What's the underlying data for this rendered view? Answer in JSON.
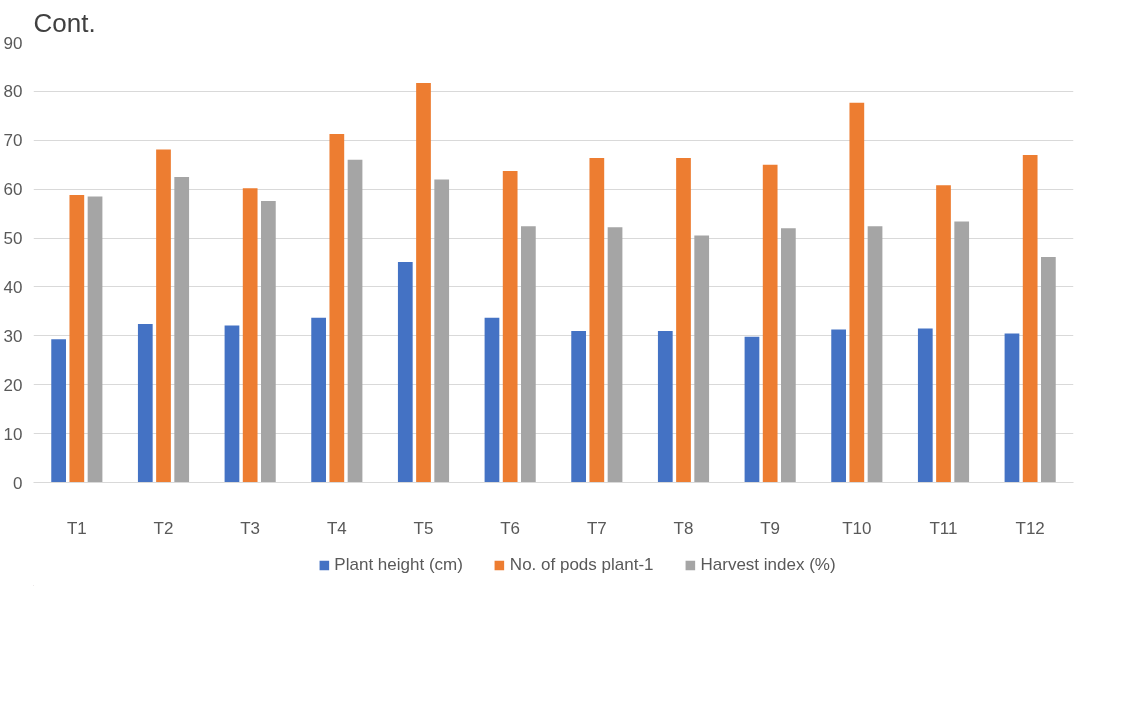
{
  "chart_data": {
    "type": "bar",
    "title": "Cont.",
    "categories": [
      "T1",
      "T2",
      "T3",
      "T4",
      "T5",
      "T6",
      "T7",
      "T8",
      "T9",
      "T10",
      "T11",
      "T12"
    ],
    "series": [
      {
        "name": "Plant height (cm)",
        "color": "#4472c4",
        "values": [
          29.3,
          32.4,
          32.1,
          33.7,
          45.1,
          33.7,
          31.0,
          31.0,
          29.8,
          31.3,
          31.5,
          30.5
        ]
      },
      {
        "name": "No. of pods plant-1",
        "color": "#ed7d31",
        "values": [
          58.8,
          68.1,
          60.2,
          71.3,
          81.7,
          63.7,
          66.4,
          66.4,
          65.0,
          77.7,
          60.8,
          67.0
        ]
      },
      {
        "name": "Harvest index (%)",
        "color": "#a5a5a5",
        "values": [
          58.5,
          62.5,
          57.6,
          66.0,
          62.0,
          52.4,
          52.2,
          50.5,
          52.0,
          52.4,
          53.4,
          46.1
        ]
      }
    ],
    "ylim": [
      0,
      90
    ],
    "yticks": [
      0,
      10,
      20,
      30,
      40,
      50,
      60,
      70,
      80,
      90
    ],
    "grid": "y",
    "legend": "bottom"
  }
}
